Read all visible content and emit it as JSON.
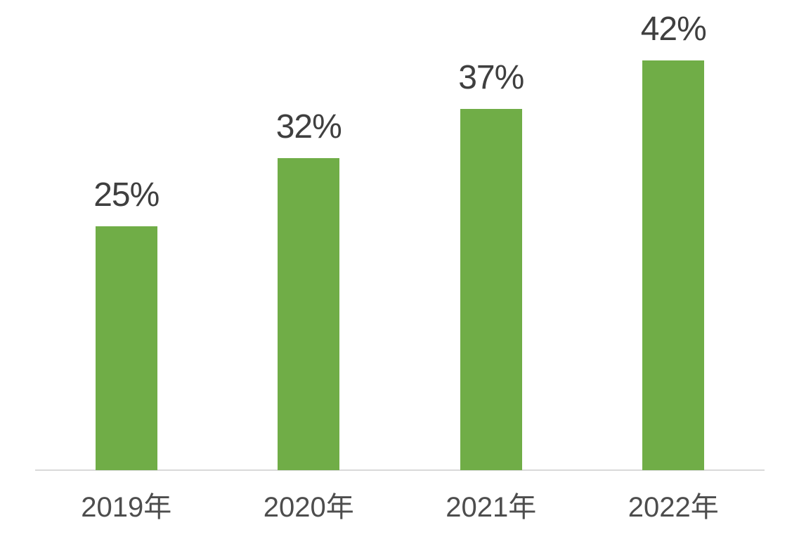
{
  "chart_data": {
    "type": "bar",
    "categories": [
      "2019年",
      "2020年",
      "2021年",
      "2022年"
    ],
    "values": [
      25,
      32,
      37,
      42
    ],
    "data_labels": [
      "25%",
      "32%",
      "37%",
      "42%"
    ],
    "title": "",
    "xlabel": "",
    "ylabel": "",
    "ylim": [
      0,
      48
    ],
    "grid": false,
    "legend": false,
    "legend_position": "none",
    "bar_color": "#70AD47",
    "data_label_color": "#3F3F3F",
    "tick_label_color": "#4D4D4D",
    "axis_line_color": "#D9D9D9",
    "background_color": "#FFFFFF"
  }
}
